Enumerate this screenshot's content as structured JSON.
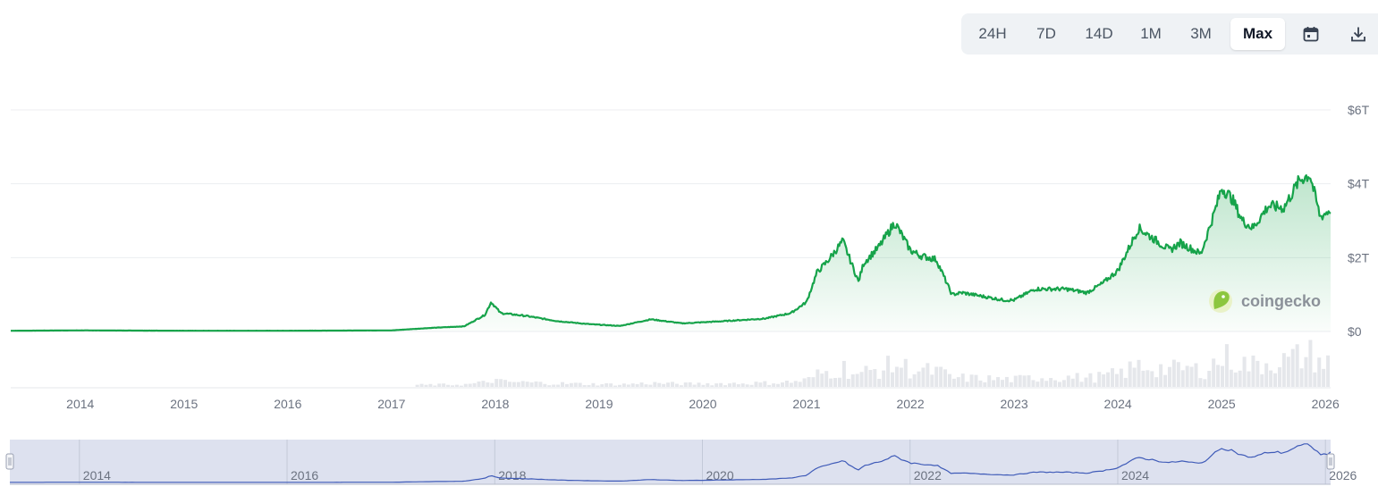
{
  "toolbar": {
    "ranges": [
      "24H",
      "7D",
      "14D",
      "1M",
      "3M",
      "Max"
    ],
    "active": "Max",
    "calendar_icon": "calendar-icon",
    "download_icon": "download-icon"
  },
  "watermark": {
    "text": "coingecko",
    "icon": "gecko-logo-icon"
  },
  "colors": {
    "line": "#16a34a",
    "area_top": "#16a34a",
    "volume": "#e5e7eb",
    "navigator_fill": "#d7dcec",
    "navigator_line": "#3f5bb8"
  },
  "chart_data": {
    "type": "area",
    "ylim": [
      0,
      6
    ],
    "y_ticks": [
      {
        "value": 0,
        "label": "$0"
      },
      {
        "value": 2,
        "label": "$2T"
      },
      {
        "value": 4,
        "label": "$4T"
      },
      {
        "value": 6,
        "label": "$6T"
      }
    ],
    "x_range": [
      2013.33,
      2026.05
    ],
    "x_ticks": [
      "2014",
      "2015",
      "2016",
      "2017",
      "2018",
      "2019",
      "2020",
      "2021",
      "2022",
      "2023",
      "2024",
      "2025",
      "2026"
    ],
    "navigator_ticks": [
      "2014",
      "2016",
      "2018",
      "2020",
      "2022",
      "2024",
      "2026"
    ],
    "grid": true,
    "series": [
      {
        "x": [
          2013.33,
          2014.0,
          2015.0,
          2016.0,
          2017.0,
          2017.4,
          2017.7,
          2017.9,
          2017.96,
          2018.05,
          2018.3,
          2018.6,
          2018.9,
          2019.2,
          2019.5,
          2019.8,
          2020.2,
          2020.6,
          2020.85,
          2021.0,
          2021.1,
          2021.2,
          2021.35,
          2021.5,
          2021.55,
          2021.7,
          2021.85,
          2022.0,
          2022.1,
          2022.25,
          2022.4,
          2022.5,
          2022.7,
          2022.9,
          2023.0,
          2023.2,
          2023.5,
          2023.7,
          2023.85,
          2024.0,
          2024.2,
          2024.5,
          2024.6,
          2024.8,
          2024.95,
          2025.0,
          2025.1,
          2025.2,
          2025.3,
          2025.45,
          2025.6,
          2025.75,
          2025.85,
          2025.95,
          2026.05
        ],
        "values": [
          0.02,
          0.03,
          0.02,
          0.02,
          0.03,
          0.1,
          0.14,
          0.45,
          0.8,
          0.5,
          0.42,
          0.28,
          0.2,
          0.15,
          0.33,
          0.22,
          0.28,
          0.35,
          0.5,
          0.8,
          1.6,
          1.9,
          2.45,
          1.35,
          1.85,
          2.3,
          2.95,
          2.2,
          2.05,
          1.95,
          1.0,
          1.05,
          0.95,
          0.85,
          0.85,
          1.15,
          1.15,
          1.05,
          1.3,
          1.65,
          2.8,
          2.2,
          2.4,
          2.1,
          3.4,
          3.9,
          3.6,
          3.0,
          2.8,
          3.4,
          3.35,
          4.1,
          4.25,
          3.1,
          3.3
        ]
      }
    ]
  }
}
